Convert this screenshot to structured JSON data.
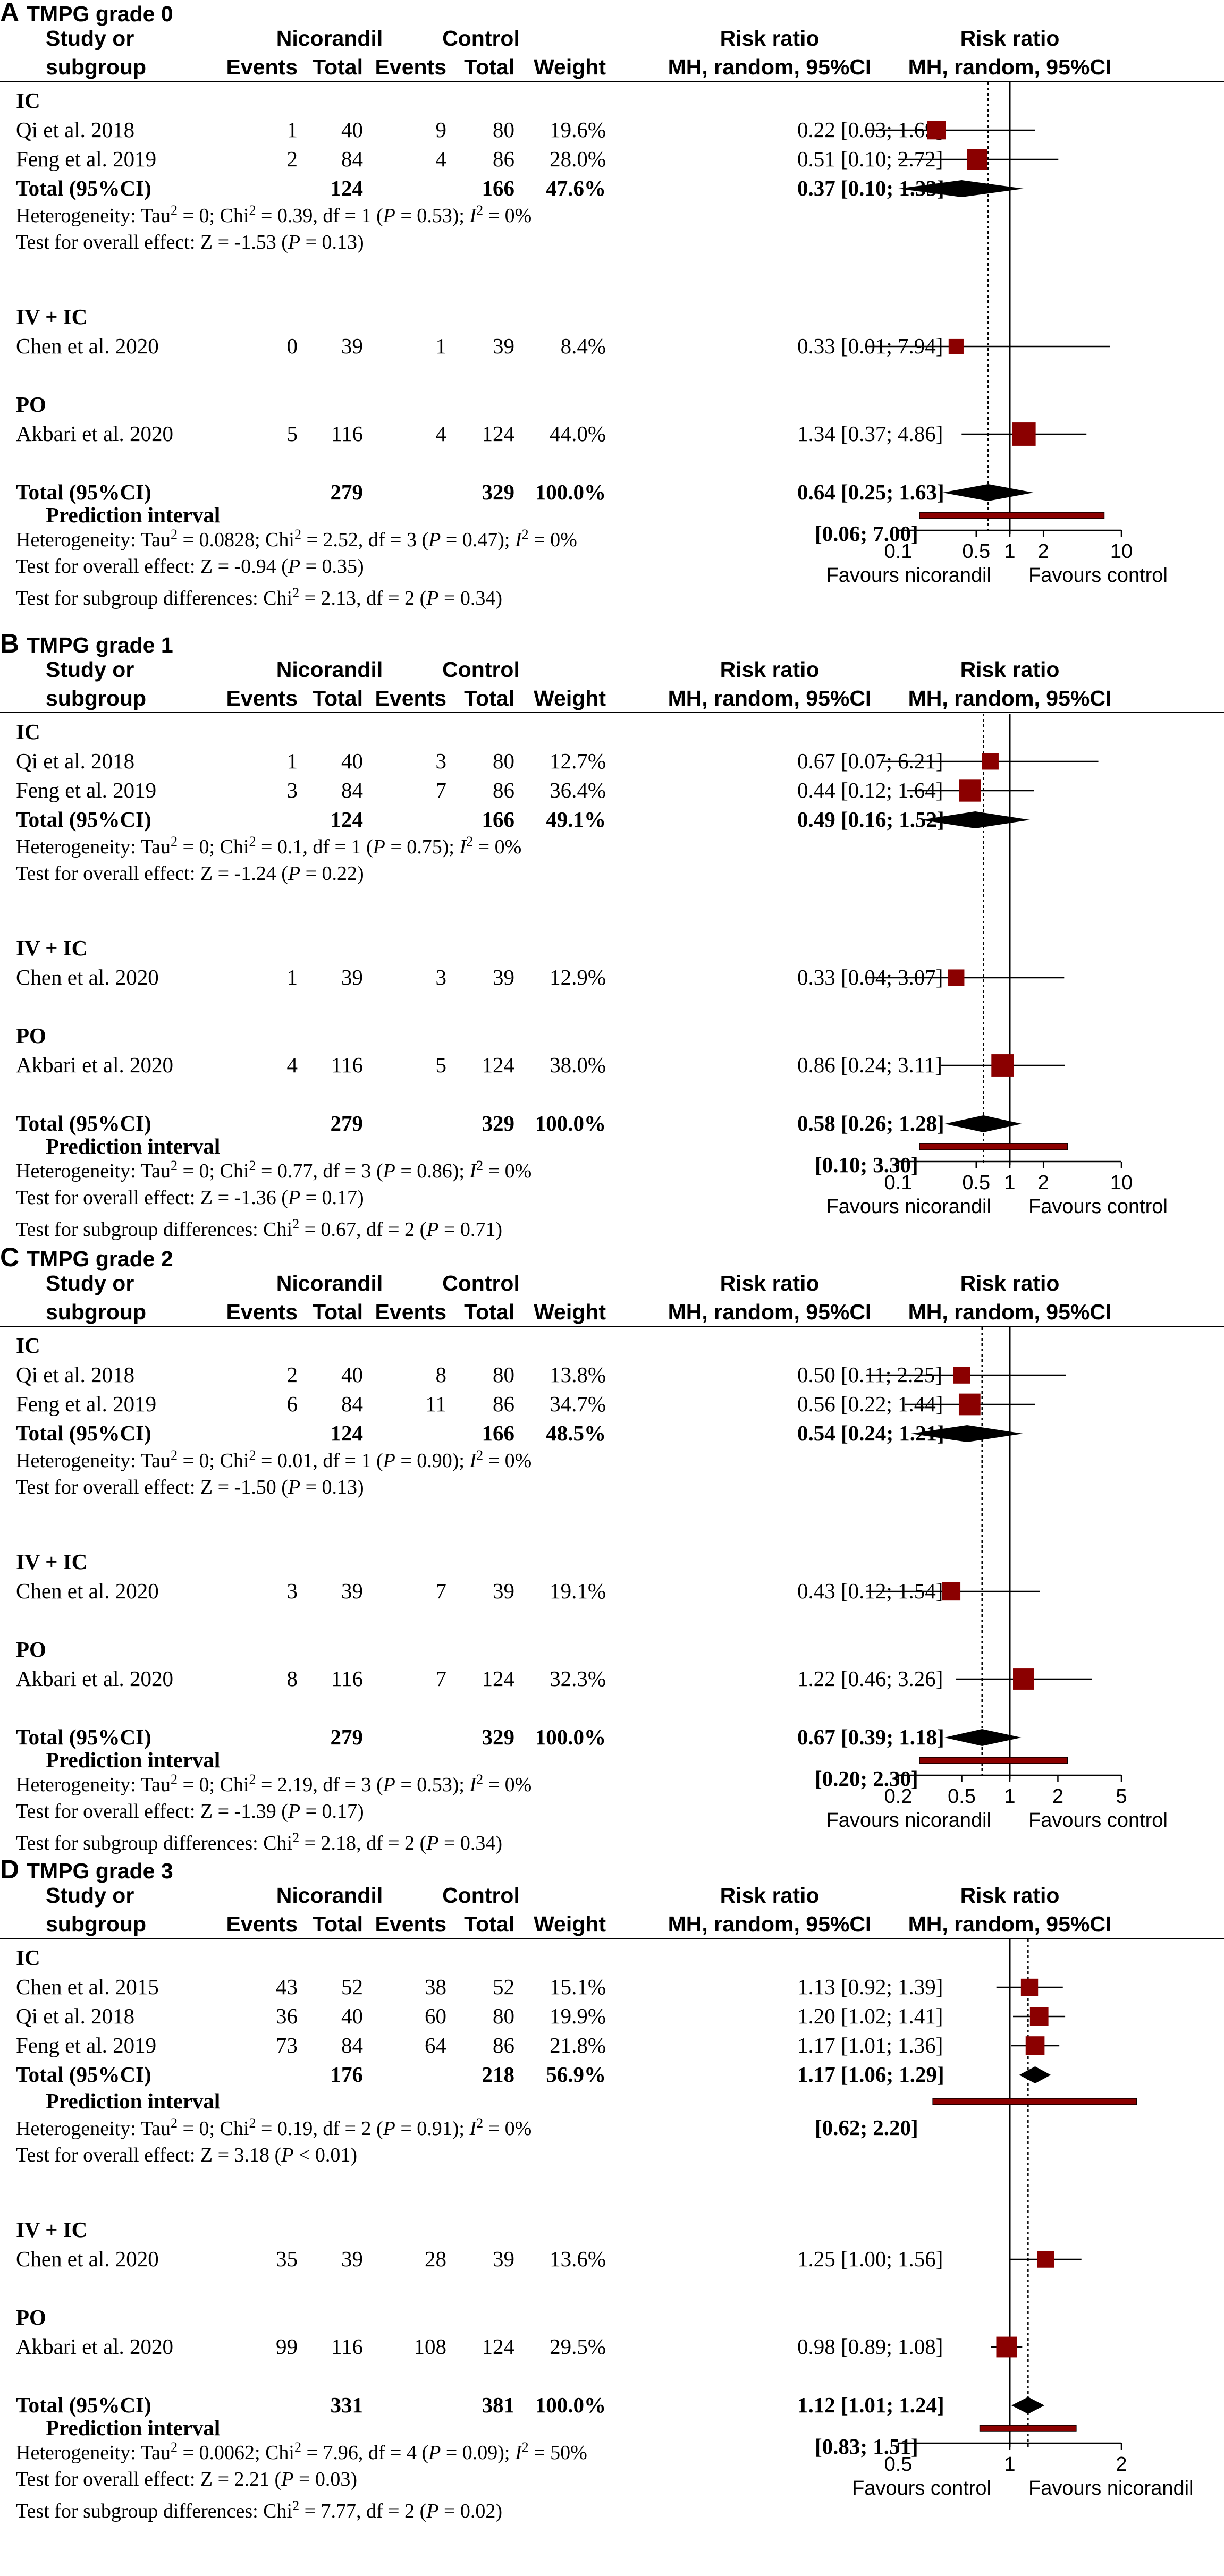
{
  "chart_data": [
    {
      "type": "forest",
      "panel": "A",
      "title": "TMPG grade 0",
      "header": {
        "col1a": "Study or",
        "col1b": "subgroup",
        "grp1": "Nicorandil",
        "grp2": "Control",
        "events": "Events",
        "total": "Total",
        "weight": "Weight",
        "rr": "Risk ratio",
        "method": "MH, random, 95%CI"
      },
      "axis": {
        "min": 0.1,
        "max": 10,
        "ticks": [
          {
            "v": 0.1,
            "label": "0.1"
          },
          {
            "v": 0.5,
            "label": "0.5"
          },
          {
            "v": 1,
            "label": "1"
          },
          {
            "v": 2,
            "label": "2"
          },
          {
            "v": 10,
            "label": "10"
          }
        ],
        "left_label": "Favours nicorandil",
        "right_label": "Favours control"
      },
      "subgroups": [
        {
          "name": "IC",
          "studies": [
            {
              "name": "Qi et al. 2018",
              "e1": "1",
              "n1": "40",
              "e2": "9",
              "n2": "80",
              "weight": "19.6%",
              "ci_text": "0.22 [0.03; 1.69]",
              "rr": 0.22,
              "lo": 0.03,
              "hi": 1.69,
              "w": 19.6
            },
            {
              "name": "Feng et al.  2019",
              "e1": "2",
              "n1": "84",
              "e2": "4",
              "n2": "86",
              "weight": "28.0%",
              "ci_text": "0.51 [0.10; 2.72]",
              "rr": 0.51,
              "lo": 0.1,
              "hi": 2.72,
              "w": 28.0
            }
          ],
          "total": {
            "label": "Total (95%CI)",
            "n1": "124",
            "n2": "166",
            "weight": "47.6%",
            "ci_text": "0.37 [0.10; 1.33]",
            "rr": 0.37,
            "lo": 0.1,
            "hi": 1.33
          },
          "het": [
            "Heterogeneity: Tau² = 0; Chi² = 0.39, df = 1 (P = 0.53); I² = 0%",
            "Test for overall effect: Z = -1.53 (P = 0.13)"
          ]
        },
        {
          "name": "IV + IC",
          "studies": [
            {
              "name": "Chen et al. 2020",
              "e1": "0",
              "n1": "39",
              "e2": "1",
              "n2": "39",
              "weight": "8.4%",
              "ci_text": "0.33 [0.01; 7.94]",
              "rr": 0.33,
              "lo": 0.01,
              "hi": 7.94,
              "w": 8.4
            }
          ]
        },
        {
          "name": "PO",
          "studies": [
            {
              "name": "Akbari et al. 2020",
              "e1": "5",
              "n1": "116",
              "e2": "4",
              "n2": "124",
              "weight": "44.0%",
              "ci_text": "1.34 [0.37; 4.86]",
              "rr": 1.34,
              "lo": 0.37,
              "hi": 4.86,
              "w": 44.0
            }
          ]
        }
      ],
      "overall": {
        "label": "Total (95%CI)",
        "n1": "279",
        "n2": "329",
        "weight": "100.0%",
        "ci_text": "0.64 [0.25; 1.63]",
        "rr": 0.64,
        "lo": 0.25,
        "hi": 1.63
      },
      "prediction": {
        "label": "Prediction interval",
        "ci_text": "[0.06; 7.00]",
        "lo": 0.06,
        "hi": 7.0
      },
      "footer": [
        "Heterogeneity: Tau² = 0.0828; Chi² = 2.52, df = 3 (P = 0.47); I² = 0%",
        "Test for overall effect: Z = -0.94 (P = 0.35)",
        "Test for subgroup differences: Chi² = 2.13, df = 2 (P = 0.34)"
      ]
    },
    {
      "type": "forest",
      "panel": "B",
      "title": "TMPG grade 1",
      "header": {
        "col1a": "Study or",
        "col1b": "subgroup",
        "grp1": "Nicorandil",
        "grp2": "Control",
        "events": "Events",
        "total": "Total",
        "weight": "Weight",
        "rr": "Risk ratio",
        "method": "MH, random, 95%CI"
      },
      "axis": {
        "min": 0.1,
        "max": 10,
        "ticks": [
          {
            "v": 0.1,
            "label": "0.1"
          },
          {
            "v": 0.5,
            "label": "0.5"
          },
          {
            "v": 1,
            "label": "1"
          },
          {
            "v": 2,
            "label": "2"
          },
          {
            "v": 10,
            "label": "10"
          }
        ],
        "left_label": "Favours nicorandil",
        "right_label": "Favours control"
      },
      "subgroups": [
        {
          "name": "IC",
          "studies": [
            {
              "name": "Qi et al. 2018",
              "e1": "1",
              "n1": "40",
              "e2": "3",
              "n2": "80",
              "weight": "12.7%",
              "ci_text": "0.67 [0.07; 6.21]",
              "rr": 0.67,
              "lo": 0.07,
              "hi": 6.21,
              "w": 12.7
            },
            {
              "name": "Feng et al.  2019",
              "e1": "3",
              "n1": "84",
              "e2": "7",
              "n2": "86",
              "weight": "36.4%",
              "ci_text": "0.44 [0.12; 1.64]",
              "rr": 0.44,
              "lo": 0.12,
              "hi": 1.64,
              "w": 36.4
            }
          ],
          "total": {
            "label": "Total (95%CI)",
            "n1": "124",
            "n2": "166",
            "weight": "49.1%",
            "ci_text": "0.49 [0.16; 1.52]",
            "rr": 0.49,
            "lo": 0.16,
            "hi": 1.52
          },
          "het": [
            "Heterogeneity: Tau² = 0; Chi² = 0.1, df = 1 (P = 0.75); I² = 0%",
            "Test for overall effect: Z = -1.24 (P = 0.22)"
          ]
        },
        {
          "name": "IV + IC",
          "studies": [
            {
              "name": "Chen et al. 2020",
              "e1": "1",
              "n1": "39",
              "e2": "3",
              "n2": "39",
              "weight": "12.9%",
              "ci_text": "0.33 [0.04; 3.07]",
              "rr": 0.33,
              "lo": 0.04,
              "hi": 3.07,
              "w": 12.9
            }
          ]
        },
        {
          "name": "PO",
          "studies": [
            {
              "name": "Akbari et al. 2020",
              "e1": "4",
              "n1": "116",
              "e2": "5",
              "n2": "124",
              "weight": "38.0%",
              "ci_text": "0.86 [0.24; 3.11]",
              "rr": 0.86,
              "lo": 0.24,
              "hi": 3.11,
              "w": 38.0
            }
          ]
        }
      ],
      "overall": {
        "label": "Total (95%CI)",
        "n1": "279",
        "n2": "329",
        "weight": "100.0%",
        "ci_text": "0.58 [0.26; 1.28]",
        "rr": 0.58,
        "lo": 0.26,
        "hi": 1.28
      },
      "prediction": {
        "label": "Prediction interval",
        "ci_text": "[0.10; 3.30]",
        "lo": 0.1,
        "hi": 3.3
      },
      "footer": [
        "Heterogeneity: Tau² = 0; Chi² = 0.77, df = 3 (P = 0.86); I² = 0%",
        "Test for overall effect: Z = -1.36 (P = 0.17)",
        "Test for subgroup differences: Chi² = 0.67, df = 2 (P = 0.71)"
      ]
    },
    {
      "type": "forest",
      "panel": "C",
      "title": "TMPG grade 2",
      "header": {
        "col1a": "Study or",
        "col1b": "subgroup",
        "grp1": "Nicorandil",
        "grp2": "Control",
        "events": "Events",
        "total": "Total",
        "weight": "Weight",
        "rr": "Risk ratio",
        "method": "MH, random, 95%CI"
      },
      "axis": {
        "min": 0.2,
        "max": 5,
        "ticks": [
          {
            "v": 0.2,
            "label": "0.2"
          },
          {
            "v": 0.5,
            "label": "0.5"
          },
          {
            "v": 1,
            "label": "1"
          },
          {
            "v": 2,
            "label": "2"
          },
          {
            "v": 5,
            "label": "5"
          }
        ],
        "left_label": "Favours nicorandil",
        "right_label": "Favours control"
      },
      "subgroups": [
        {
          "name": "IC",
          "studies": [
            {
              "name": "Qi et al. 2018",
              "e1": "2",
              "n1": "40",
              "e2": "8",
              "n2": "80",
              "weight": "13.8%",
              "ci_text": "0.50 [0.11; 2.25]",
              "rr": 0.5,
              "lo": 0.11,
              "hi": 2.25,
              "w": 13.8
            },
            {
              "name": "Feng et al.  2019",
              "e1": "6",
              "n1": "84",
              "e2": "11",
              "n2": "86",
              "weight": "34.7%",
              "ci_text": "0.56 [0.22; 1.44]",
              "rr": 0.56,
              "lo": 0.22,
              "hi": 1.44,
              "w": 34.7
            }
          ],
          "total": {
            "label": "Total (95%CI)",
            "n1": "124",
            "n2": "166",
            "weight": "48.5%",
            "ci_text": "0.54 [0.24; 1.21]",
            "rr": 0.54,
            "lo": 0.24,
            "hi": 1.21
          },
          "het": [
            "Heterogeneity: Tau² = 0; Chi² = 0.01, df = 1 (P = 0.90); I² = 0%",
            "Test for overall effect: Z = -1.50 (P = 0.13)"
          ]
        },
        {
          "name": "IV + IC",
          "studies": [
            {
              "name": "Chen et al. 2020",
              "e1": "3",
              "n1": "39",
              "e2": "7",
              "n2": "39",
              "weight": "19.1%",
              "ci_text": "0.43 [0.12; 1.54]",
              "rr": 0.43,
              "lo": 0.12,
              "hi": 1.54,
              "w": 19.1
            }
          ]
        },
        {
          "name": "PO",
          "studies": [
            {
              "name": "Akbari et al. 2020",
              "e1": "8",
              "n1": "116",
              "e2": "7",
              "n2": "124",
              "weight": "32.3%",
              "ci_text": "1.22 [0.46; 3.26]",
              "rr": 1.22,
              "lo": 0.46,
              "hi": 3.26,
              "w": 32.3
            }
          ]
        }
      ],
      "overall": {
        "label": "Total (95%CI)",
        "n1": "279",
        "n2": "329",
        "weight": "100.0%",
        "ci_text": "0.67 [0.39; 1.18]",
        "rr": 0.67,
        "lo": 0.39,
        "hi": 1.18
      },
      "prediction": {
        "label": "Prediction interval",
        "ci_text": "[0.20; 2.30]",
        "lo": 0.2,
        "hi": 2.3
      },
      "footer": [
        "Heterogeneity: Tau² = 0; Chi² = 2.19, df = 3 (P = 0.53); I² = 0%",
        "Test for overall effect: Z = -1.39 (P = 0.17)",
        "Test for subgroup differences: Chi² = 2.18, df = 2 (P = 0.34)"
      ]
    },
    {
      "type": "forest",
      "panel": "D",
      "title": "TMPG grade 3",
      "header": {
        "col1a": "Study or",
        "col1b": "subgroup",
        "grp1": "Nicorandil",
        "grp2": "Control",
        "events": "Events",
        "total": "Total",
        "weight": "Weight",
        "rr": "Risk ratio",
        "method": "MH, random, 95%CI"
      },
      "axis": {
        "min": 0.5,
        "max": 2,
        "ticks": [
          {
            "v": 0.5,
            "label": "0.5"
          },
          {
            "v": 1,
            "label": "1"
          },
          {
            "v": 2,
            "label": "2"
          }
        ],
        "left_label": "Favours control",
        "right_label": "Favours nicorandil"
      },
      "subgroups": [
        {
          "name": "IC",
          "studies": [
            {
              "name": "Chen et al. 2015",
              "e1": "43",
              "n1": "52",
              "e2": "38",
              "n2": "52",
              "weight": "15.1%",
              "ci_text": "1.13 [0.92; 1.39]",
              "rr": 1.13,
              "lo": 0.92,
              "hi": 1.39,
              "w": 15.1
            },
            {
              "name": "Qi et al. 2018",
              "e1": "36",
              "n1": "40",
              "e2": "60",
              "n2": "80",
              "weight": "19.9%",
              "ci_text": "1.20 [1.02; 1.41]",
              "rr": 1.2,
              "lo": 1.02,
              "hi": 1.41,
              "w": 19.9
            },
            {
              "name": "Feng et al.  2019",
              "e1": "73",
              "n1": "84",
              "e2": "64",
              "n2": "86",
              "weight": "21.8%",
              "ci_text": "1.17 [1.01; 1.36]",
              "rr": 1.17,
              "lo": 1.01,
              "hi": 1.36,
              "w": 21.8
            }
          ],
          "total": {
            "label": "Total (95%CI)",
            "n1": "176",
            "n2": "218",
            "weight": "56.9%",
            "ci_text": "1.17 [1.06; 1.29]",
            "rr": 1.17,
            "lo": 1.06,
            "hi": 1.29
          },
          "pred": {
            "label": "Prediction interval",
            "ci_text": "[0.62; 2.20]",
            "lo": 0.62,
            "hi": 2.2
          },
          "het": [
            "Heterogeneity: Tau² = 0; Chi² = 0.19, df = 2 (P = 0.91); I² = 0%",
            "Test for overall effect: Z = 3.18 (P < 0.01)"
          ]
        },
        {
          "name": "IV + IC",
          "studies": [
            {
              "name": "Chen et al. 2020",
              "e1": "35",
              "n1": "39",
              "e2": "28",
              "n2": "39",
              "weight": "13.6%",
              "ci_text": "1.25 [1.00; 1.56]",
              "rr": 1.25,
              "lo": 1.0,
              "hi": 1.56,
              "w": 13.6
            }
          ]
        },
        {
          "name": "PO",
          "studies": [
            {
              "name": "Akbari et al. 2020",
              "e1": "99",
              "n1": "116",
              "e2": "108",
              "n2": "124",
              "weight": "29.5%",
              "ci_text": "0.98 [0.89; 1.08]",
              "rr": 0.98,
              "lo": 0.89,
              "hi": 1.08,
              "w": 29.5
            }
          ]
        }
      ],
      "overall": {
        "label": "Total (95%CI)",
        "n1": "331",
        "n2": "381",
        "weight": "100.0%",
        "ci_text": "1.12 [1.01; 1.24]",
        "rr": 1.12,
        "lo": 1.01,
        "hi": 1.24
      },
      "prediction": {
        "label": "Prediction interval",
        "ci_text": "[0.83; 1.51]",
        "lo": 0.83,
        "hi": 1.51
      },
      "footer": [
        "Heterogeneity: Tau² = 0.0062; Chi² = 7.96, df = 4 (P = 0.09); I² = 50%",
        "Test for overall effect: Z = 2.21 (P = 0.03)",
        "Test for subgroup differences: Chi² = 7.77, df = 2 (P = 0.02)"
      ]
    }
  ],
  "colors": {
    "marker": "#8b0000",
    "line": "#000000"
  }
}
